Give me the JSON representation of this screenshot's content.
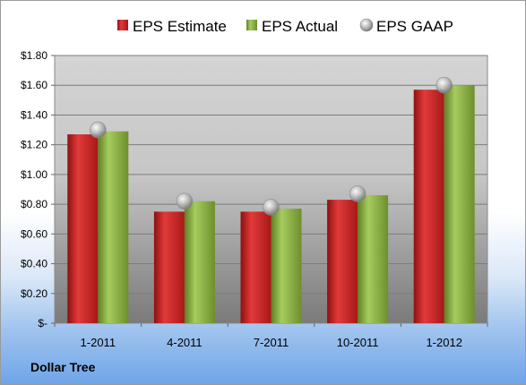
{
  "company": "Dollar Tree",
  "chart_data": {
    "type": "bar",
    "categories": [
      "1-2011",
      "4-2011",
      "7-2011",
      "10-2011",
      "1-2012"
    ],
    "series": [
      {
        "name": "EPS Estimate",
        "kind": "bar",
        "color": "#d42a2a",
        "values": [
          1.27,
          0.75,
          0.75,
          0.83,
          1.57
        ]
      },
      {
        "name": "EPS Actual",
        "kind": "bar",
        "color": "#8fb84a",
        "values": [
          1.29,
          0.82,
          0.77,
          0.86,
          1.6
        ]
      },
      {
        "name": "EPS GAAP",
        "kind": "marker",
        "color": "#b0b0b0",
        "values": [
          1.3,
          0.82,
          0.78,
          0.87,
          1.6
        ]
      }
    ],
    "y_ticks": [
      "$-",
      "$0.20",
      "$0.40",
      "$0.60",
      "$0.80",
      "$1.00",
      "$1.20",
      "$1.40",
      "$1.60",
      "$1.80"
    ],
    "ylim": [
      0,
      1.8
    ],
    "y_step": 0.2,
    "grid": true,
    "legend_position": "top"
  }
}
